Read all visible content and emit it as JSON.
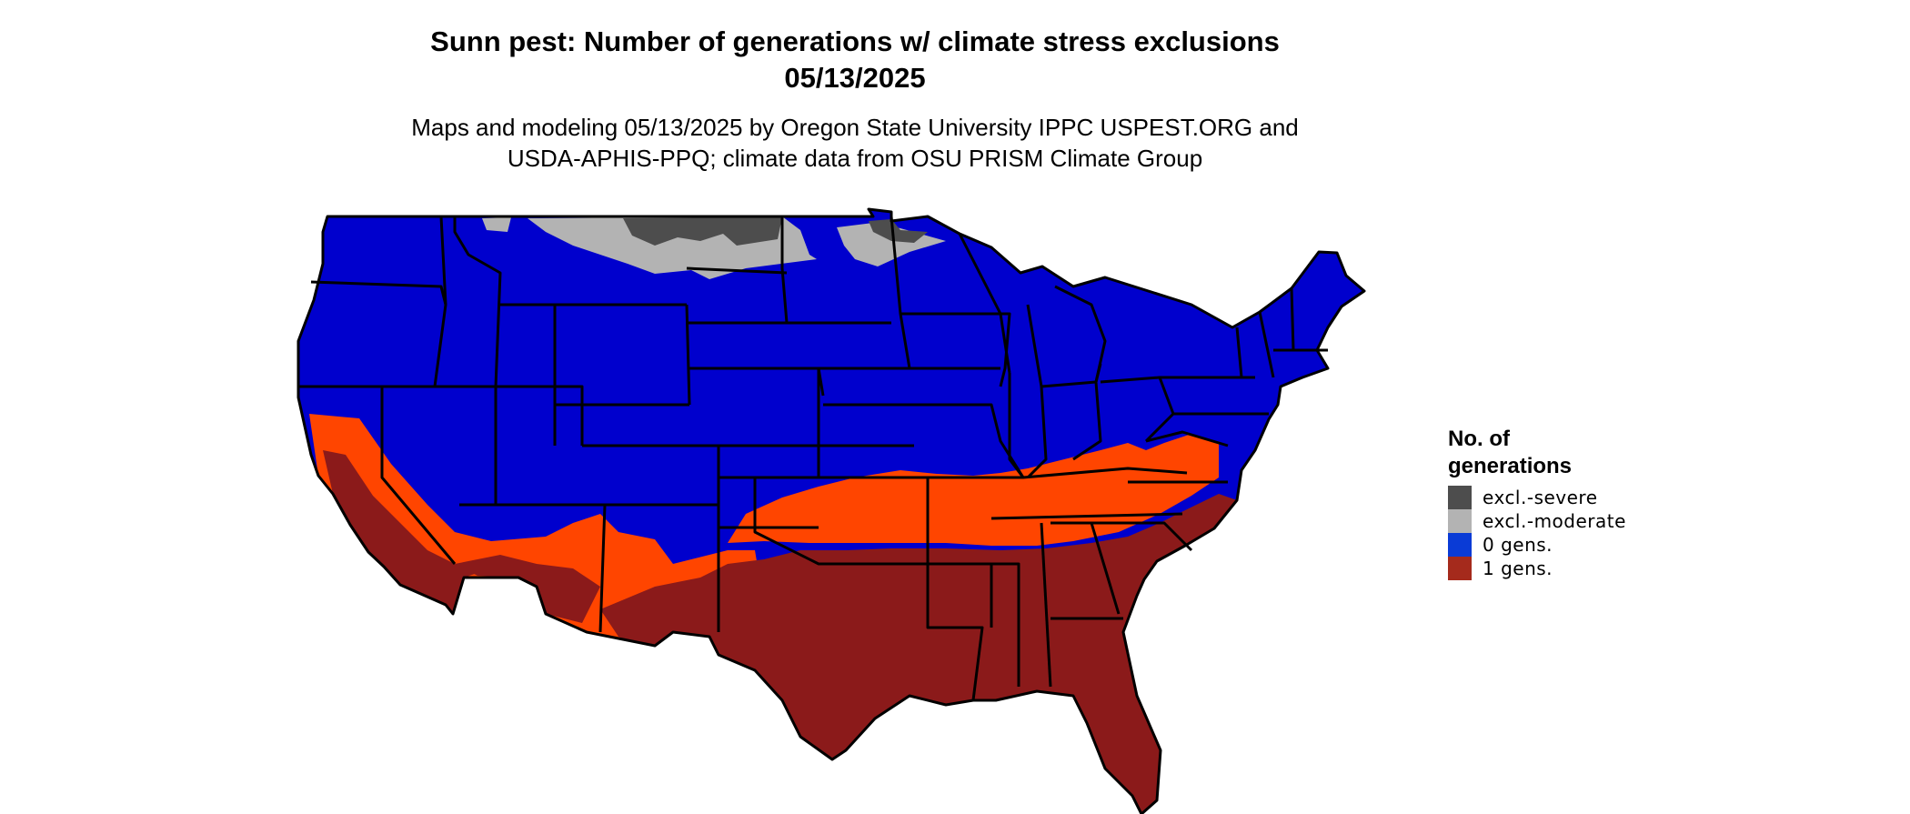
{
  "title": {
    "line1": "Sunn pest: Number of generations w/ climate stress exclusions",
    "line2": "05/13/2025"
  },
  "subtitle": {
    "line1": "Maps and modeling 05/13/2025 by Oregon State University IPPC USPEST.ORG and",
    "line2": "USDA-APHIS-PPQ; climate data from OSU PRISM Climate Group"
  },
  "legend": {
    "title_line1": "No. of",
    "title_line2": "generations",
    "items": [
      {
        "label": "excl.-severe",
        "color": "#4d4d4d"
      },
      {
        "label": "excl.-moderate",
        "color": "#b3b3b3"
      },
      {
        "label": "0 gens.",
        "color": "#0a3bd6"
      },
      {
        "label": "1 gens.",
        "color": "#a52a1c"
      }
    ]
  },
  "map_colors": {
    "zero_gens_fill": "#0000cd",
    "one_gens_fill": "#8b1a1a",
    "transition_orange": "#ff4500",
    "excl_severe": "#4d4d4d",
    "excl_moderate": "#b3b3b3",
    "state_border": "#000000"
  }
}
